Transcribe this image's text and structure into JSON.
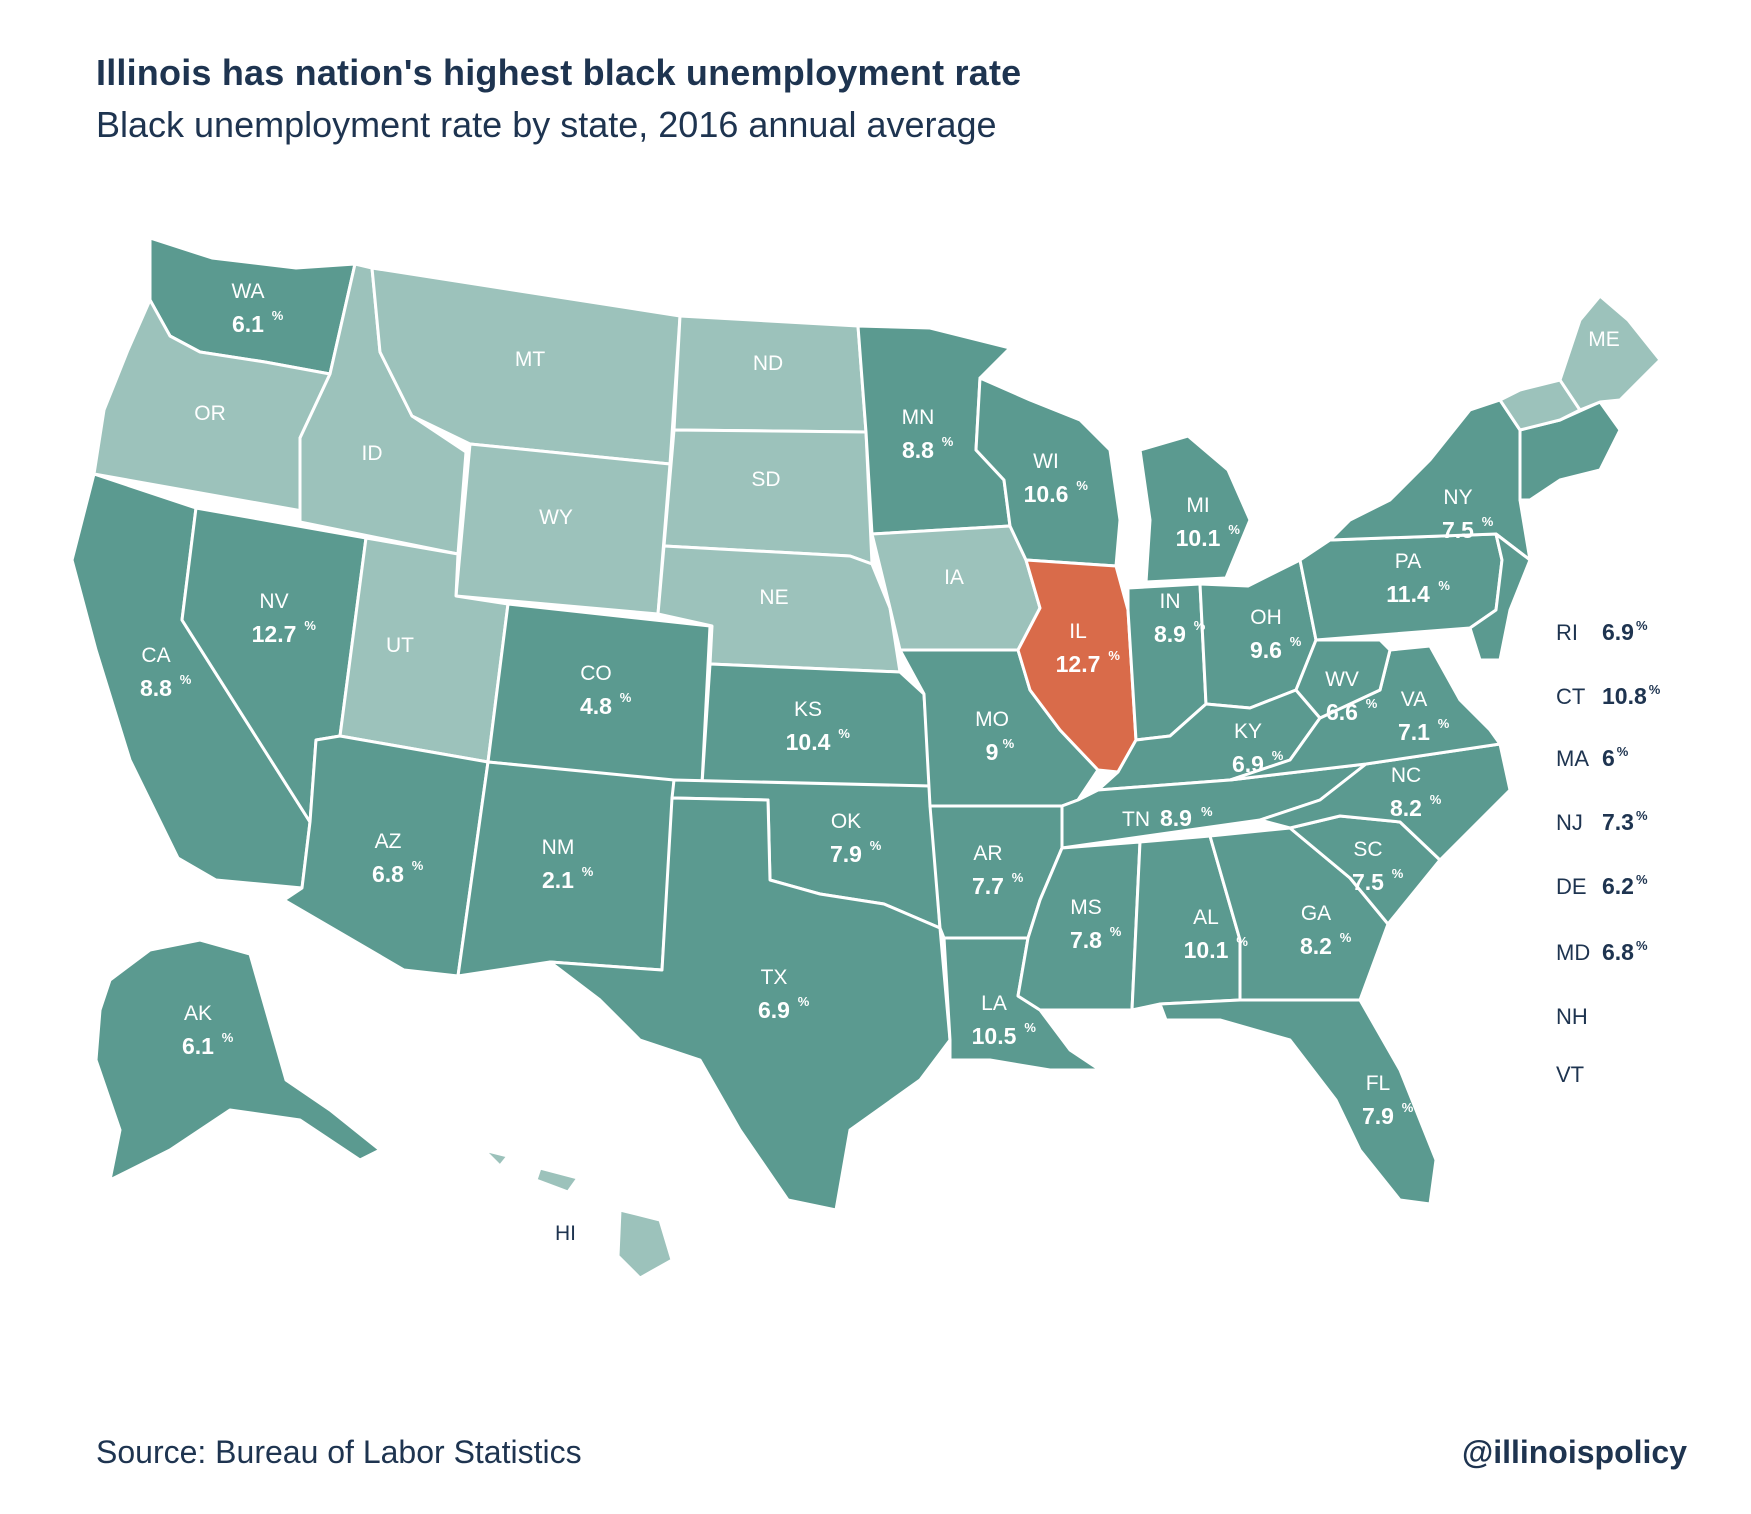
{
  "title": "Illinois has nation's highest black unemployment rate",
  "subtitle": "Black unemployment rate by state, 2016 annual average",
  "source": "Source: Bureau of Labor Statistics",
  "handle": "@illinoispolicy",
  "colors": {
    "data": "#5b9a90",
    "nodata": "#9cc2bb",
    "highlight": "#d96b4a"
  },
  "states": [
    {
      "abbr": "WA",
      "rate": "6.1",
      "color": "data"
    },
    {
      "abbr": "OR",
      "rate": "",
      "color": "nodata"
    },
    {
      "abbr": "CA",
      "rate": "8.8",
      "color": "data"
    },
    {
      "abbr": "NV",
      "rate": "12.7",
      "color": "data"
    },
    {
      "abbr": "ID",
      "rate": "",
      "color": "nodata"
    },
    {
      "abbr": "MT",
      "rate": "",
      "color": "nodata"
    },
    {
      "abbr": "WY",
      "rate": "",
      "color": "nodata"
    },
    {
      "abbr": "UT",
      "rate": "",
      "color": "nodata"
    },
    {
      "abbr": "AZ",
      "rate": "6.8",
      "color": "data"
    },
    {
      "abbr": "CO",
      "rate": "4.8",
      "color": "data"
    },
    {
      "abbr": "NM",
      "rate": "2.1",
      "color": "data"
    },
    {
      "abbr": "ND",
      "rate": "",
      "color": "nodata"
    },
    {
      "abbr": "SD",
      "rate": "",
      "color": "nodata"
    },
    {
      "abbr": "NE",
      "rate": "",
      "color": "nodata"
    },
    {
      "abbr": "KS",
      "rate": "10.4",
      "color": "data"
    },
    {
      "abbr": "OK",
      "rate": "7.9",
      "color": "data"
    },
    {
      "abbr": "TX",
      "rate": "6.9",
      "color": "data"
    },
    {
      "abbr": "MN",
      "rate": "8.8",
      "color": "data"
    },
    {
      "abbr": "IA",
      "rate": "",
      "color": "nodata"
    },
    {
      "abbr": "MO",
      "rate": "9",
      "color": "data"
    },
    {
      "abbr": "AR",
      "rate": "7.7",
      "color": "data"
    },
    {
      "abbr": "LA",
      "rate": "10.5",
      "color": "data"
    },
    {
      "abbr": "WI",
      "rate": "10.6",
      "color": "data"
    },
    {
      "abbr": "IL",
      "rate": "12.7",
      "color": "highlight"
    },
    {
      "abbr": "MI",
      "rate": "10.1",
      "color": "data"
    },
    {
      "abbr": "IN",
      "rate": "8.9",
      "color": "data"
    },
    {
      "abbr": "OH",
      "rate": "9.6",
      "color": "data"
    },
    {
      "abbr": "KY",
      "rate": "6.9",
      "color": "data"
    },
    {
      "abbr": "TN",
      "rate": "8.9",
      "color": "data"
    },
    {
      "abbr": "MS",
      "rate": "7.8",
      "color": "data"
    },
    {
      "abbr": "AL",
      "rate": "10.1",
      "color": "data"
    },
    {
      "abbr": "GA",
      "rate": "8.2",
      "color": "data"
    },
    {
      "abbr": "FL",
      "rate": "7.9",
      "color": "data"
    },
    {
      "abbr": "SC",
      "rate": "7.5",
      "color": "data"
    },
    {
      "abbr": "NC",
      "rate": "8.2",
      "color": "data"
    },
    {
      "abbr": "VA",
      "rate": "7.1",
      "color": "data"
    },
    {
      "abbr": "WV",
      "rate": "6.6",
      "color": "data"
    },
    {
      "abbr": "PA",
      "rate": "11.4",
      "color": "data"
    },
    {
      "abbr": "NY",
      "rate": "7.5",
      "color": "data"
    },
    {
      "abbr": "ME",
      "rate": "",
      "color": "nodata"
    },
    {
      "abbr": "AK",
      "rate": "6.1",
      "color": "data"
    }
  ],
  "small_states": [
    {
      "abbr": "RI",
      "rate": "6.9"
    },
    {
      "abbr": "CT",
      "rate": "10.8"
    },
    {
      "abbr": "MA",
      "rate": "6"
    },
    {
      "abbr": "NJ",
      "rate": "7.3"
    },
    {
      "abbr": "DE",
      "rate": "6.2"
    },
    {
      "abbr": "MD",
      "rate": "6.8"
    },
    {
      "abbr": "NH",
      "rate": ""
    },
    {
      "abbr": "VT",
      "rate": ""
    }
  ],
  "hawaii": {
    "abbr": "HI",
    "color": "nodata"
  }
}
